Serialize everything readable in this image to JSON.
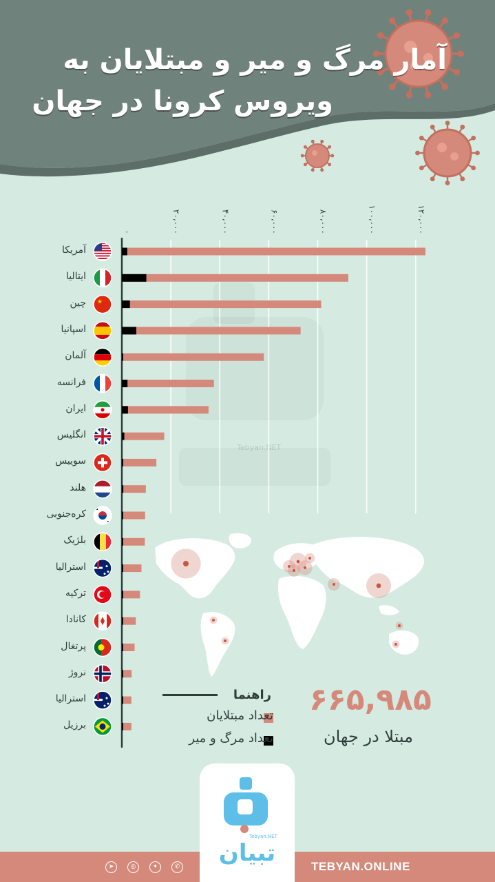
{
  "header": {
    "title_line1": "آمار مرگ و میر و مبتلایان به",
    "title_line2": "ویروس کرونا در جهان",
    "bg_color": "#6f827b"
  },
  "chart_data": {
    "type": "bar",
    "orientation": "horizontal",
    "categories": [
      "آمریکا",
      "ایتالیا",
      "چین",
      "اسپانیا",
      "آلمان",
      "فرانسه",
      "ایران",
      "انگلیس",
      "سوییس",
      "هلند",
      "کره‌جنوبی",
      "بلژیک",
      "استرالیا",
      "ترکیه",
      "کانادا",
      "پرتغال",
      "نروژ",
      "استرالیا",
      "برزیل"
    ],
    "series": [
      {
        "name": "تعداد مبتلایان",
        "color": "#d5897a",
        "values": [
          124000,
          92500,
          81400,
          73000,
          58000,
          37600,
          35400,
          17300,
          14100,
          9800,
          9500,
          9400,
          8000,
          7400,
          5700,
          5200,
          4000,
          3900,
          3900
        ]
      },
      {
        "name": "تعداد مرگ و میر",
        "color": "#000000",
        "values": [
          2200,
          10000,
          3300,
          5900,
          400,
          2300,
          2500,
          1000,
          200,
          600,
          130,
          350,
          40,
          110,
          60,
          100,
          20,
          40,
          110
        ]
      }
    ],
    "x_ticks": [
      0,
      20000,
      40000,
      60000,
      80000,
      100000,
      120000
    ],
    "x_tick_labels": [
      "۰",
      "۲۰،۰۰۰",
      "۴۰،۰۰۰",
      "۶۰،۰۰۰",
      "۸۰،۰۰۰",
      "۱۰۰،۰۰۰",
      "۱۲۰،۰۰۰"
    ],
    "xlim": [
      0,
      124000
    ],
    "grid": true
  },
  "countries": [
    {
      "name": "آمریکا",
      "flag": "us-flag-icon"
    },
    {
      "name": "ایتالیا",
      "flag": "italy-flag-icon"
    },
    {
      "name": "چین",
      "flag": "china-flag-icon"
    },
    {
      "name": "اسپانیا",
      "flag": "spain-flag-icon"
    },
    {
      "name": "آلمان",
      "flag": "germany-flag-icon"
    },
    {
      "name": "فرانسه",
      "flag": "france-flag-icon"
    },
    {
      "name": "ایران",
      "flag": "iran-flag-icon"
    },
    {
      "name": "انگلیس",
      "flag": "uk-flag-icon"
    },
    {
      "name": "سوییس",
      "flag": "switzerland-flag-icon"
    },
    {
      "name": "هلند",
      "flag": "netherlands-flag-icon"
    },
    {
      "name": "کره‌جنوبی",
      "flag": "south-korea-flag-icon"
    },
    {
      "name": "بلژیک",
      "flag": "belgium-flag-icon"
    },
    {
      "name": "استرالیا",
      "flag": "australia-flag-icon"
    },
    {
      "name": "ترکیه",
      "flag": "turkey-flag-icon"
    },
    {
      "name": "کانادا",
      "flag": "canada-flag-icon"
    },
    {
      "name": "پرتغال",
      "flag": "portugal-flag-icon"
    },
    {
      "name": "نروژ",
      "flag": "norway-flag-icon"
    },
    {
      "name": "استرالیا",
      "flag": "australia-flag-icon"
    },
    {
      "name": "برزیل",
      "flag": "brazil-flag-icon"
    }
  ],
  "legend": {
    "title": "راهنما",
    "items": [
      {
        "label": "تعداد مبتلایان",
        "color": "#d5897a"
      },
      {
        "label": "تعداد مرگ و میر",
        "color": "#000000"
      }
    ]
  },
  "summary": {
    "total": "۶۶۵,۹۸۵",
    "caption": "مبتلا در جهان"
  },
  "watermark": {
    "label": "Tebyan.NET"
  },
  "footer": {
    "logo_text": "تبیان",
    "logo_sub": "Tebyan.NET",
    "site": "TEBYAN.ONLINE",
    "social_icons": [
      "telegram-icon",
      "instagram-icon",
      "twitter-icon",
      "whatsapp-icon"
    ]
  },
  "colors": {
    "background": "#d5ebe2",
    "accent": "#d5897a",
    "header": "#6f827b",
    "text": "#2f3d3a"
  }
}
